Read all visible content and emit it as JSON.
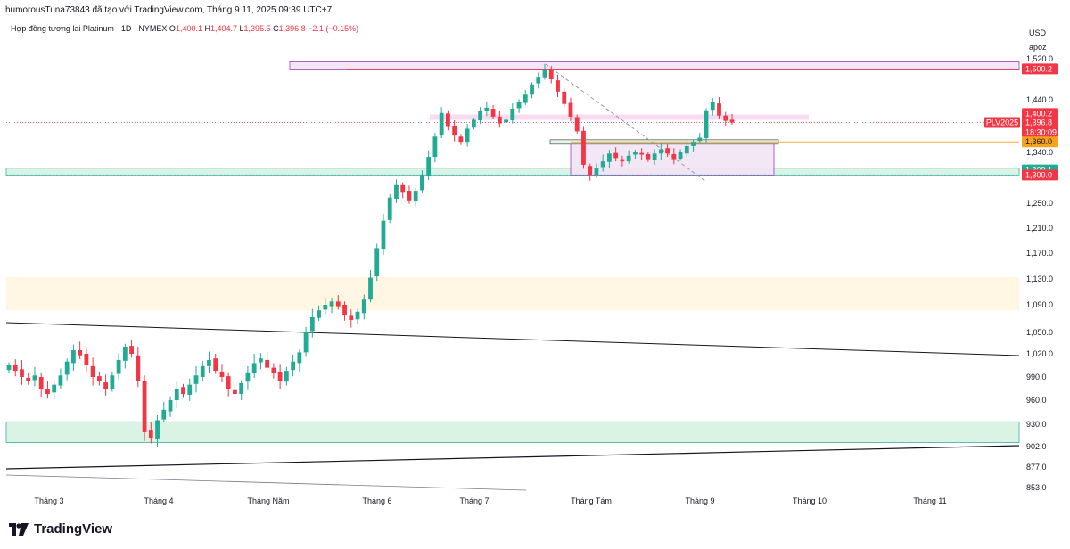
{
  "header": {
    "attribution": "humorousTuna73843 đã tạo với TradingView.com, Tháng 9 11, 2025 09:39 UTC+7"
  },
  "legend": {
    "symbol": "Hợp đồng tương lai Platinum · 1D · NYMEX",
    "o_label": "O",
    "o_value": "1,400.1",
    "h_label": "H",
    "h_value": "1,404.7",
    "l_label": "L",
    "l_value": "1,395.5",
    "c_label": "C",
    "c_value": "1,396.8",
    "change": "−2.1 (−0.15%)"
  },
  "axis": {
    "currency": "USD",
    "user": "apoz"
  },
  "brand": {
    "name": "TradingView"
  },
  "colors": {
    "up": "#22ab94",
    "down": "#f23645",
    "orange": "#f7a21b",
    "green_tag": "#22ab94",
    "red_tag": "#f23645"
  },
  "chart_data": {
    "type": "candlestick",
    "y_ticks": [
      {
        "value": 1520,
        "label": "1,520.0"
      },
      {
        "value": 1440,
        "label": "1,440.0"
      },
      {
        "value": 1340,
        "label": "1,340.0"
      },
      {
        "value": 1250,
        "label": "1,250.0"
      },
      {
        "value": 1210,
        "label": "1,210.0"
      },
      {
        "value": 1170,
        "label": "1,170.0"
      },
      {
        "value": 1130,
        "label": "1,130.0"
      },
      {
        "value": 1090,
        "label": "1,090.0"
      },
      {
        "value": 1050,
        "label": "1,050.0"
      },
      {
        "value": 1020,
        "label": "1,020.0"
      },
      {
        "value": 990,
        "label": "990.0"
      },
      {
        "value": 960,
        "label": "960.0"
      },
      {
        "value": 930,
        "label": "930.0"
      },
      {
        "value": 902,
        "label": "902.0"
      },
      {
        "value": 877,
        "label": "877.0"
      },
      {
        "value": 853,
        "label": "853.0"
      }
    ],
    "x_ticks": [
      "Tháng 3",
      "Tháng 4",
      "Tháng Năm",
      "Tháng 6",
      "Tháng 7",
      "Tháng Tám",
      "Tháng 9",
      "Tháng 10",
      "Tháng 11"
    ],
    "price_tags": [
      {
        "label": "1,500.2",
        "value": 1500.2,
        "color": "red"
      },
      {
        "label": "1,400.2",
        "value": 1414,
        "color": "red"
      },
      {
        "label": "1,396.8",
        "value": 1396.8,
        "color": "red",
        "sub": "18:30:09"
      },
      {
        "label": "PLV2025",
        "value": 1396.8,
        "color": "red",
        "kind": "symbol"
      },
      {
        "label": "1,360.0",
        "value": 1360,
        "color": "orange"
      },
      {
        "label": "1,309.1",
        "value": 1309.1,
        "color": "green"
      },
      {
        "label": "1,300.0",
        "value": 1300,
        "color": "red"
      }
    ],
    "zones": [
      {
        "name": "resistance-band-top",
        "from": 1500,
        "to": 1514,
        "color": "purple"
      },
      {
        "name": "support-band",
        "from": 1300,
        "to": 1312,
        "color": "green"
      },
      {
        "name": "mid-band",
        "from": 1082,
        "to": 1133,
        "color": "orange"
      },
      {
        "name": "low-band",
        "from": 907,
        "to": 933,
        "color": "green"
      },
      {
        "name": "consolidation-box",
        "from": 1300,
        "to": 1362,
        "color": "purple"
      }
    ],
    "closes": [
      1005,
      998,
      990,
      985,
      992,
      975,
      968,
      980,
      992,
      1010,
      1025,
      1018,
      1005,
      990,
      985,
      975,
      992,
      1012,
      1030,
      1020,
      985,
      920,
      912,
      935,
      948,
      960,
      975,
      968,
      980,
      992,
      1004,
      1012,
      998,
      990,
      975,
      968,
      982,
      996,
      1008,
      1014,
      1002,
      995,
      985,
      998,
      1010,
      1022,
      1050,
      1072,
      1082,
      1090,
      1095,
      1088,
      1075,
      1068,
      1080,
      1098,
      1132,
      1178,
      1222,
      1260,
      1282,
      1270,
      1255,
      1272,
      1300,
      1332,
      1370,
      1415,
      1390,
      1372,
      1360,
      1385,
      1402,
      1418,
      1425,
      1408,
      1395,
      1402,
      1423,
      1436,
      1450,
      1470,
      1485,
      1498,
      1480,
      1456,
      1432,
      1408,
      1380,
      1318,
      1300,
      1312,
      1324,
      1338,
      1330,
      1324,
      1334,
      1340,
      1336,
      1328,
      1338,
      1346,
      1338,
      1328,
      1340,
      1352,
      1360,
      1368,
      1420,
      1435,
      1410,
      1400,
      1396.8
    ]
  }
}
